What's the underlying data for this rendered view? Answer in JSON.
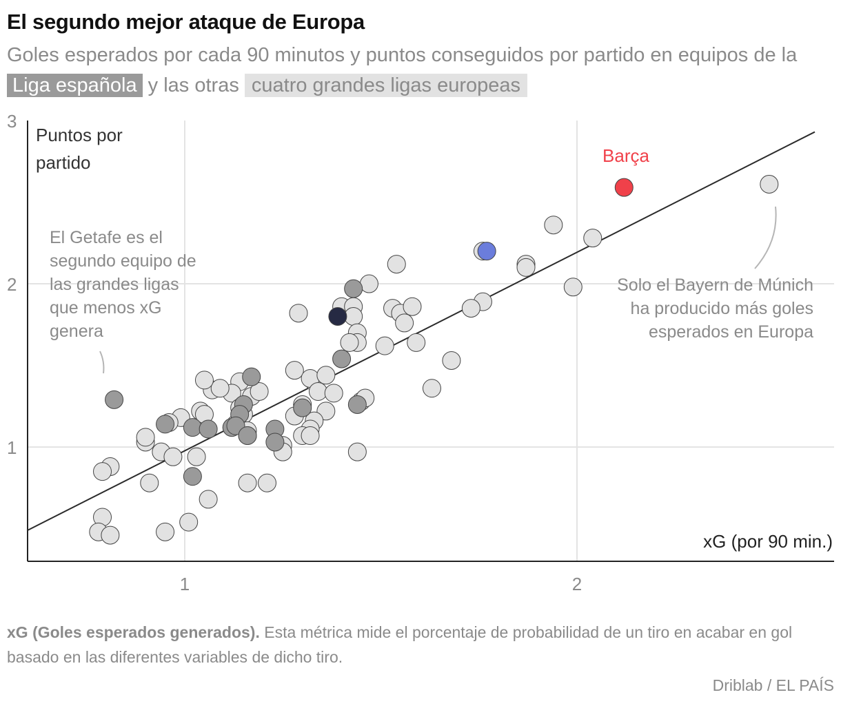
{
  "header": {
    "title": "El segundo mejor ataque de Europa",
    "subtitle_part1": "Goles esperados por cada 90 minutos y puntos conseguidos por partido en equipos de la ",
    "highlight_spain": "Liga española",
    "subtitle_part2": " y las otras ",
    "highlight_other": "cuatro grandes ligas europeas"
  },
  "colors": {
    "spain": "#9a9a9a",
    "other": "#e2e2e2",
    "barca": "#f0414a",
    "real_madrid": "#6b7ddc",
    "atletico": "#262a43",
    "trend_line": "#2b2b2b",
    "grid": "#e3e3e3"
  },
  "chart_data": {
    "type": "scatter",
    "title": "El segundo mejor ataque de Europa",
    "xlabel": "xG (por 90 min.)",
    "ylabel_line1": "Puntos por",
    "ylabel_line2": "partido",
    "xlim": [
      0.6,
      2.6
    ],
    "ylim": [
      0.3,
      3.0
    ],
    "x_ticks": [
      {
        "value": 1,
        "label": "1"
      },
      {
        "value": 2,
        "label": "2"
      }
    ],
    "y_ticks": [
      {
        "value": 1,
        "label": "1"
      },
      {
        "value": 2,
        "label": "2"
      },
      {
        "value": 3,
        "label": "3"
      }
    ],
    "grid": true,
    "trend_line": {
      "x1": 0.6,
      "y1": 0.49,
      "x2": 2.6,
      "y2": 2.99
    },
    "annotations": {
      "barca": "Barça",
      "getafe": [
        "El Getafe es el",
        "segundo equipo de",
        "las grandes ligas",
        "que menos xG",
        "genera"
      ],
      "bayern": [
        "Solo el Bayern de Múnich",
        "ha producido más goles",
        "esperados en Europa"
      ]
    },
    "series": [
      {
        "key": "other",
        "points": [
          [
            2.49,
            2.61
          ],
          [
            1.94,
            2.36
          ],
          [
            2.04,
            2.28
          ],
          [
            1.99,
            1.98
          ],
          [
            1.87,
            2.12
          ],
          [
            1.87,
            2.1
          ],
          [
            1.76,
            2.2
          ],
          [
            1.54,
            2.12
          ],
          [
            1.47,
            2.0
          ],
          [
            1.76,
            1.89
          ],
          [
            1.73,
            1.85
          ],
          [
            1.53,
            1.85
          ],
          [
            1.55,
            1.82
          ],
          [
            1.56,
            1.76
          ],
          [
            1.58,
            1.86
          ],
          [
            1.4,
            1.86
          ],
          [
            1.43,
            1.86
          ],
          [
            1.43,
            1.8
          ],
          [
            1.44,
            1.7
          ],
          [
            1.44,
            1.64
          ],
          [
            1.42,
            1.64
          ],
          [
            1.59,
            1.64
          ],
          [
            1.51,
            1.62
          ],
          [
            1.29,
            1.82
          ],
          [
            1.68,
            1.53
          ],
          [
            1.63,
            1.36
          ],
          [
            1.28,
            1.47
          ],
          [
            1.33,
            1.4
          ],
          [
            1.32,
            1.42
          ],
          [
            1.34,
            1.34
          ],
          [
            1.36,
            1.44
          ],
          [
            1.38,
            1.33
          ],
          [
            1.36,
            1.22
          ],
          [
            1.3,
            1.26
          ],
          [
            1.28,
            1.19
          ],
          [
            1.33,
            1.16
          ],
          [
            1.32,
            1.11
          ],
          [
            1.3,
            1.07
          ],
          [
            1.32,
            1.07
          ],
          [
            1.45,
            1.28
          ],
          [
            1.46,
            1.3
          ],
          [
            1.44,
            0.97
          ],
          [
            1.25,
            1.01
          ],
          [
            1.25,
            0.97
          ],
          [
            1.16,
            0.78
          ],
          [
            1.21,
            0.78
          ],
          [
            1.17,
            1.31
          ],
          [
            1.19,
            1.34
          ],
          [
            1.14,
            1.4
          ],
          [
            1.12,
            1.33
          ],
          [
            1.07,
            1.35
          ],
          [
            1.09,
            1.36
          ],
          [
            1.14,
            1.24
          ],
          [
            1.15,
            1.2
          ],
          [
            1.12,
            1.12
          ],
          [
            1.13,
            1.14
          ],
          [
            1.16,
            1.1
          ],
          [
            1.16,
            1.07
          ],
          [
            1.04,
            1.22
          ],
          [
            1.05,
            1.2
          ],
          [
            1.05,
            1.41
          ],
          [
            0.99,
            1.18
          ],
          [
            0.96,
            1.15
          ],
          [
            0.9,
            1.03
          ],
          [
            0.9,
            1.06
          ],
          [
            0.94,
            0.97
          ],
          [
            0.97,
            0.94
          ],
          [
            1.03,
            0.94
          ],
          [
            0.91,
            0.78
          ],
          [
            1.06,
            0.68
          ],
          [
            0.81,
            0.88
          ],
          [
            0.79,
            0.85
          ],
          [
            0.79,
            0.57
          ],
          [
            0.78,
            0.48
          ],
          [
            0.81,
            0.46
          ],
          [
            0.95,
            0.48
          ],
          [
            1.01,
            0.54
          ]
        ]
      },
      {
        "key": "spain",
        "points": [
          [
            1.43,
            1.97
          ],
          [
            1.4,
            1.54
          ],
          [
            1.44,
            1.26
          ],
          [
            1.17,
            1.43
          ],
          [
            1.15,
            1.26
          ],
          [
            1.14,
            1.2
          ],
          [
            1.12,
            1.12
          ],
          [
            1.13,
            1.13
          ],
          [
            1.16,
            1.07
          ],
          [
            1.23,
            1.11
          ],
          [
            1.23,
            1.03
          ],
          [
            1.3,
            1.24
          ],
          [
            0.95,
            1.14
          ],
          [
            1.02,
            1.12
          ],
          [
            1.06,
            1.11
          ],
          [
            1.02,
            0.82
          ],
          [
            0.82,
            1.29
          ]
        ]
      },
      {
        "key": "real_madrid",
        "points": [
          [
            1.77,
            2.2
          ]
        ]
      },
      {
        "key": "atletico",
        "points": [
          [
            1.39,
            1.8
          ]
        ]
      },
      {
        "key": "barca",
        "points": [
          [
            2.12,
            2.59
          ]
        ]
      }
    ]
  },
  "footnote": {
    "bold": "xG (Goles esperados generados).",
    "text": " Esta métrica mide el porcentaje de probabilidad de un tiro en acabar en gol basado en las diferentes variables de dicho tiro."
  },
  "source": "Driblab / EL PAÍS"
}
